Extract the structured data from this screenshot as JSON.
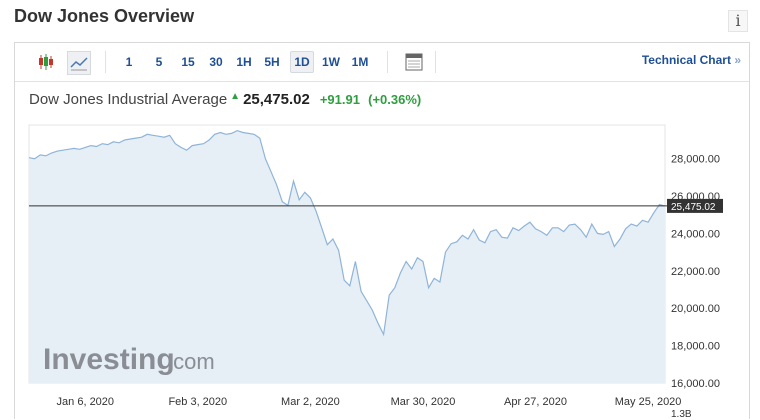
{
  "header": {
    "title": "Dow Jones Overview",
    "info_icon": "info-icon"
  },
  "toolbar": {
    "candlestick_icon": "candlestick-icon",
    "area_icon": "area-chart-icon",
    "intervals": [
      "1",
      "5",
      "15",
      "30",
      "1H",
      "5H",
      "1D",
      "1W",
      "1M"
    ],
    "active_interval": "1D",
    "calendar_icon": "calendar-icon",
    "technical_chart": "Technical Chart",
    "technical_chart_arrow": "»"
  },
  "quote": {
    "name": "Dow Jones Industrial Average",
    "price": "25,475.02",
    "change": "+91.91",
    "change_pct": "(+0.36%)"
  },
  "watermark": {
    "main": "Investing",
    "sub": ".com"
  },
  "colors": {
    "line": "#8fb4d8",
    "fill": "#e6eef6",
    "up": "#2e9e3f",
    "link": "#1f4f96",
    "price_tag": "#333333"
  },
  "chart_data": {
    "type": "area",
    "series_name": "Dow Jones Industrial Average",
    "x_tick_labels": [
      "Jan 6, 2020",
      "Feb 3, 2020",
      "Mar 2, 2020",
      "Mar 30, 2020",
      "Apr 27, 2020",
      "May 25, 2020"
    ],
    "y_tick_labels": [
      "28,000.00",
      "26,000.00",
      "24,000.00",
      "22,000.00",
      "20,000.00",
      "18,000.00",
      "16,000.00"
    ],
    "y_ticks": [
      28000,
      26000,
      24000,
      22000,
      20000,
      18000,
      16000
    ],
    "ylim": [
      16000,
      29800
    ],
    "current_value": 25475.02,
    "current_label": "25,475.02",
    "volume_label": "1.3B",
    "values": [
      28050,
      28000,
      28200,
      28150,
      28300,
      28400,
      28450,
      28500,
      28550,
      28500,
      28600,
      28700,
      28650,
      28800,
      28750,
      28900,
      28850,
      29000,
      29050,
      29100,
      29150,
      29300,
      29250,
      29200,
      29150,
      29250,
      28800,
      28600,
      28450,
      28700,
      28750,
      28800,
      29000,
      29300,
      29400,
      29300,
      29350,
      29500,
      29400,
      29350,
      29300,
      29100,
      28000,
      27300,
      26600,
      25700,
      25500,
      26800,
      25800,
      26200,
      25900,
      25200,
      24300,
      23400,
      23700,
      23100,
      21500,
      21200,
      22500,
      20900,
      20400,
      19900,
      19200,
      18600,
      20700,
      21100,
      21900,
      22500,
      22100,
      22700,
      22500,
      21100,
      21600,
      21400,
      23000,
      23450,
      23550,
      23900,
      23700,
      24200,
      23650,
      23500,
      24100,
      24200,
      23800,
      23750,
      24300,
      24150,
      24400,
      24600,
      24250,
      24100,
      23900,
      24300,
      24300,
      24100,
      24450,
      24500,
      24200,
      23800,
      24500,
      24000,
      23950,
      24100,
      23300,
      23700,
      24250,
      24500,
      24400,
      24700,
      24600,
      25100,
      25550,
      25475
    ]
  }
}
